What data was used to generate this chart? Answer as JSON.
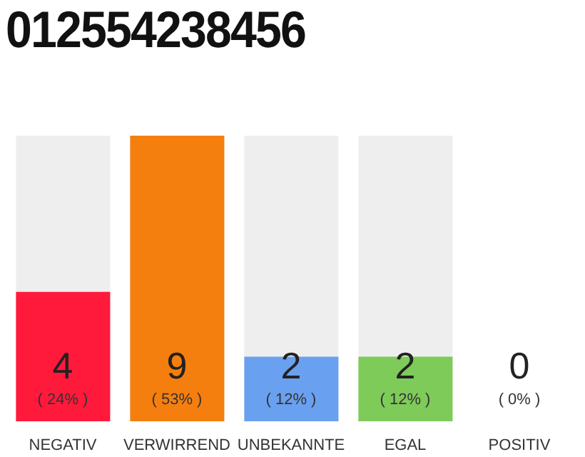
{
  "chart_data": {
    "type": "bar",
    "title": "012554238456",
    "categories": [
      "NEGATIV",
      "VERWIRREND",
      "UNBEKANNTE",
      "EGAL",
      "POSITIV"
    ],
    "values": [
      24,
      53,
      12,
      12,
      0
    ],
    "colors": [
      "#ff1a3c",
      "#f57f0e",
      "#6aa0f0",
      "#7ecb5a",
      "#bbbbbb"
    ],
    "value_labels": [
      "( 24% )",
      "( 53% )",
      "( 12% )",
      "( 12% )",
      "( 0% )"
    ],
    "annotations": [
      "4",
      "9",
      "2",
      "2",
      "0"
    ]
  }
}
